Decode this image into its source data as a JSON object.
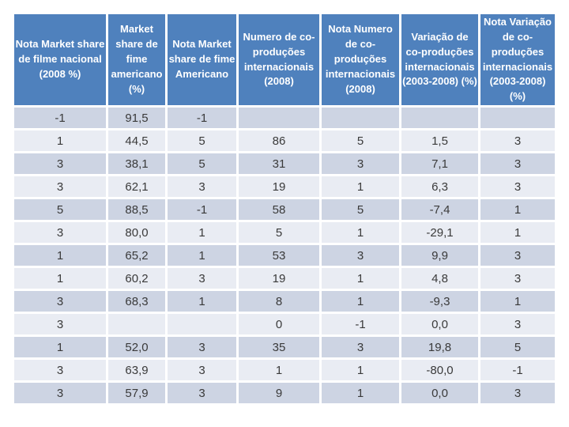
{
  "slide": {
    "background": "#ffffff"
  },
  "chart_data": {
    "type": "table",
    "title": "",
    "columns": [
      "Nota Market share de filme nacional (2008 %)",
      "Market share de fime americano (%)",
      "Nota Market share de fime Americano",
      "Numero de co-produções internacionais (2008)",
      "Nota Numero de co-produções internacionais (2008)",
      "Variação de co-produções internacionais (2003-2008) (%)",
      "Nota Variação de co-produções internacionais (2003-2008) (%)"
    ],
    "rows": [
      [
        "-1",
        "91,5",
        "-1",
        "",
        "",
        "",
        ""
      ],
      [
        "1",
        "44,5",
        "5",
        "86",
        "5",
        "1,5",
        "3"
      ],
      [
        "3",
        "38,1",
        "5",
        "31",
        "3",
        "7,1",
        "3"
      ],
      [
        "3",
        "62,1",
        "3",
        "19",
        "1",
        "6,3",
        "3"
      ],
      [
        "5",
        "88,5",
        "-1",
        "58",
        "5",
        "-7,4",
        "1"
      ],
      [
        "3",
        "80,0",
        "1",
        "5",
        "1",
        "-29,1",
        "1"
      ],
      [
        "1",
        "65,2",
        "1",
        "53",
        "3",
        "9,9",
        "3"
      ],
      [
        "1",
        "60,2",
        "3",
        "19",
        "1",
        "4,8",
        "3"
      ],
      [
        "3",
        "68,3",
        "1",
        "8",
        "1",
        "-9,3",
        "1"
      ],
      [
        "3",
        "",
        "",
        "0",
        "-1",
        "0,0",
        "3"
      ],
      [
        "1",
        "52,0",
        "3",
        "35",
        "3",
        "19,8",
        "5"
      ],
      [
        "3",
        "63,9",
        "3",
        "1",
        "1",
        "-80,0",
        "-1"
      ],
      [
        "3",
        "57,9",
        "3",
        "9",
        "1",
        "0,0",
        "3"
      ]
    ],
    "layout": {
      "header_bg": "#4f81bd",
      "header_text_color": "#ffffff",
      "band_dark": "#cdd4e3",
      "band_light": "#e9ecf3",
      "cell_text_color": "#3a3a3a",
      "first_data_row_band": "dark",
      "decimal_separator": ","
    }
  }
}
